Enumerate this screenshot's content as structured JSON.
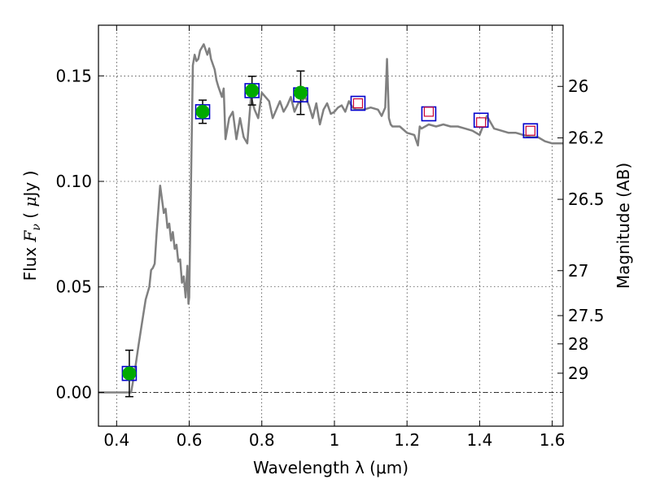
{
  "chart_data": {
    "type": "scatter",
    "title": "",
    "xlabel": "Wavelength  λ (μm)",
    "ylabel_parts": [
      "Flux  ",
      "F",
      "ν",
      "  ( ",
      "μ",
      "Jy )"
    ],
    "y2label": "Magnitude (AB)",
    "xlim": [
      0.35,
      1.63
    ],
    "ylim": [
      -0.016,
      0.174
    ],
    "xticks": [
      0.4,
      0.6,
      0.8,
      1.0,
      1.2,
      1.4,
      1.6
    ],
    "xtick_labels": [
      "0.4",
      "0.6",
      "0.8",
      "1",
      "1.2",
      "1.4",
      "1.6"
    ],
    "yticks": [
      0.0,
      0.05,
      0.1,
      0.15
    ],
    "ytick_labels": [
      "0.00",
      "0.05",
      "0.10",
      "0.15"
    ],
    "y2ticks": [
      {
        "label": "26",
        "flux": 0.145
      },
      {
        "label": "26.2",
        "flux": 0.1206
      },
      {
        "label": "26.5",
        "flux": 0.0915
      },
      {
        "label": "27",
        "flux": 0.0577
      },
      {
        "label": "27.5",
        "flux": 0.0364
      },
      {
        "label": "28",
        "flux": 0.023
      },
      {
        "label": "29",
        "flux": 0.0091
      }
    ],
    "grid": true,
    "zero_line": true,
    "colors": {
      "sed": "#808080",
      "photometry_fill": "#00aa00",
      "model_box": "#0000cc",
      "inner_box": "#cc0033",
      "errorbar": "#000000"
    },
    "sed_model": {
      "x": [
        0.35,
        0.43,
        0.44,
        0.45,
        0.46,
        0.47,
        0.48,
        0.49,
        0.495,
        0.5,
        0.505,
        0.51,
        0.52,
        0.53,
        0.535,
        0.54,
        0.545,
        0.55,
        0.555,
        0.56,
        0.565,
        0.57,
        0.575,
        0.58,
        0.585,
        0.59,
        0.595,
        0.598,
        0.6,
        0.61,
        0.615,
        0.62,
        0.625,
        0.63,
        0.64,
        0.65,
        0.655,
        0.66,
        0.67,
        0.675,
        0.68,
        0.69,
        0.695,
        0.7,
        0.71,
        0.72,
        0.73,
        0.74,
        0.75,
        0.76,
        0.77,
        0.78,
        0.79,
        0.8,
        0.81,
        0.82,
        0.83,
        0.84,
        0.85,
        0.86,
        0.87,
        0.88,
        0.89,
        0.9,
        0.91,
        0.92,
        0.93,
        0.94,
        0.95,
        0.96,
        0.97,
        0.98,
        0.99,
        1.0,
        1.01,
        1.02,
        1.03,
        1.04,
        1.05,
        1.06,
        1.08,
        1.1,
        1.12,
        1.13,
        1.14,
        1.145,
        1.15,
        1.155,
        1.16,
        1.18,
        1.2,
        1.22,
        1.23,
        1.235,
        1.24,
        1.26,
        1.28,
        1.3,
        1.32,
        1.34,
        1.36,
        1.38,
        1.4,
        1.42,
        1.44,
        1.46,
        1.48,
        1.5,
        1.52,
        1.54,
        1.56,
        1.58,
        1.6,
        1.63
      ],
      "y": [
        0.0,
        0.0,
        0.0,
        0.01,
        0.022,
        0.033,
        0.044,
        0.05,
        0.058,
        0.059,
        0.061,
        0.075,
        0.098,
        0.085,
        0.087,
        0.078,
        0.08,
        0.072,
        0.076,
        0.068,
        0.07,
        0.062,
        0.063,
        0.052,
        0.055,
        0.045,
        0.06,
        0.042,
        0.045,
        0.155,
        0.16,
        0.157,
        0.158,
        0.162,
        0.165,
        0.16,
        0.163,
        0.158,
        0.153,
        0.148,
        0.145,
        0.14,
        0.144,
        0.12,
        0.13,
        0.133,
        0.12,
        0.13,
        0.121,
        0.118,
        0.14,
        0.134,
        0.13,
        0.142,
        0.14,
        0.138,
        0.13,
        0.134,
        0.138,
        0.133,
        0.136,
        0.14,
        0.133,
        0.137,
        0.138,
        0.14,
        0.136,
        0.13,
        0.137,
        0.127,
        0.134,
        0.137,
        0.132,
        0.133,
        0.135,
        0.136,
        0.133,
        0.138,
        0.135,
        0.134,
        0.134,
        0.135,
        0.134,
        0.131,
        0.135,
        0.158,
        0.13,
        0.127,
        0.126,
        0.126,
        0.123,
        0.122,
        0.117,
        0.126,
        0.125,
        0.127,
        0.126,
        0.127,
        0.126,
        0.126,
        0.125,
        0.124,
        0.122,
        0.131,
        0.125,
        0.124,
        0.123,
        0.123,
        0.122,
        0.121,
        0.121,
        0.119,
        0.118,
        0.118
      ]
    },
    "series": [
      {
        "marker": "filled-circle",
        "x": [
          0.435,
          0.637,
          0.773,
          0.907
        ],
        "y": [
          0.009,
          0.133,
          0.143,
          0.142
        ],
        "yerr": [
          0.011,
          0.0055,
          0.0068,
          0.0103
        ]
      },
      {
        "marker": "open-square",
        "x": [
          1.065,
          1.26,
          1.404,
          1.54
        ],
        "y": [
          0.137,
          0.133,
          0.128,
          0.124
        ]
      }
    ],
    "model_points": {
      "marker": "blue-square",
      "x": [
        0.435,
        0.637,
        0.773,
        0.907,
        1.065,
        1.26,
        1.404,
        1.54
      ],
      "y": [
        0.009,
        0.133,
        0.143,
        0.141,
        0.137,
        0.132,
        0.129,
        0.124
      ]
    }
  }
}
